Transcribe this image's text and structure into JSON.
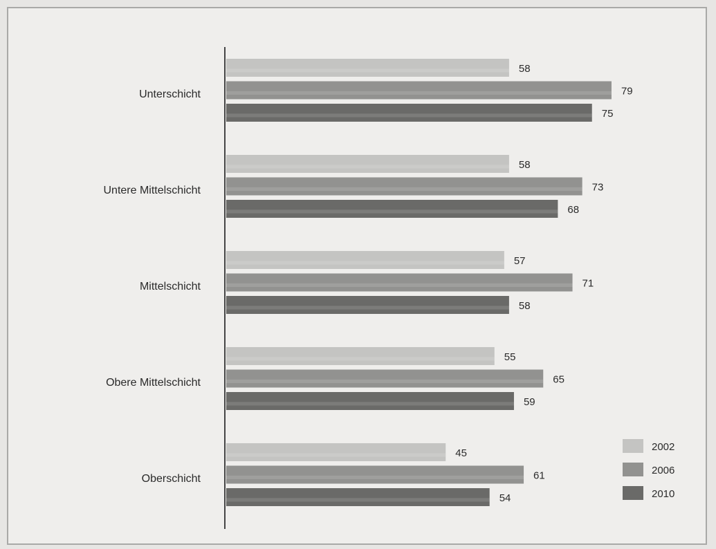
{
  "chart_data": {
    "type": "bar",
    "orientation": "horizontal",
    "categories": [
      "Unterschicht",
      "Untere Mittelschicht",
      "Mittelschicht",
      "Obere Mittelschicht",
      "Oberschicht"
    ],
    "series": [
      {
        "name": "2002",
        "values": [
          58,
          58,
          57,
          55,
          45
        ],
        "color": "#c4c4c2"
      },
      {
        "name": "2006",
        "values": [
          79,
          73,
          71,
          65,
          61
        ],
        "color": "#929290"
      },
      {
        "name": "2010",
        "values": [
          75,
          68,
          58,
          59,
          54
        ],
        "color": "#6a6a68"
      }
    ],
    "data_labels": [
      [
        "58",
        "79",
        "75"
      ],
      [
        "58",
        "73",
        "68"
      ],
      [
        "57",
        "71",
        "58"
      ],
      [
        "55",
        "65",
        "59"
      ],
      [
        "45",
        "61",
        "54"
      ]
    ],
    "xlim": [
      0,
      100
    ],
    "grid": false,
    "legend_position": "bottom-right",
    "title": "",
    "xlabel": "",
    "ylabel": ""
  }
}
